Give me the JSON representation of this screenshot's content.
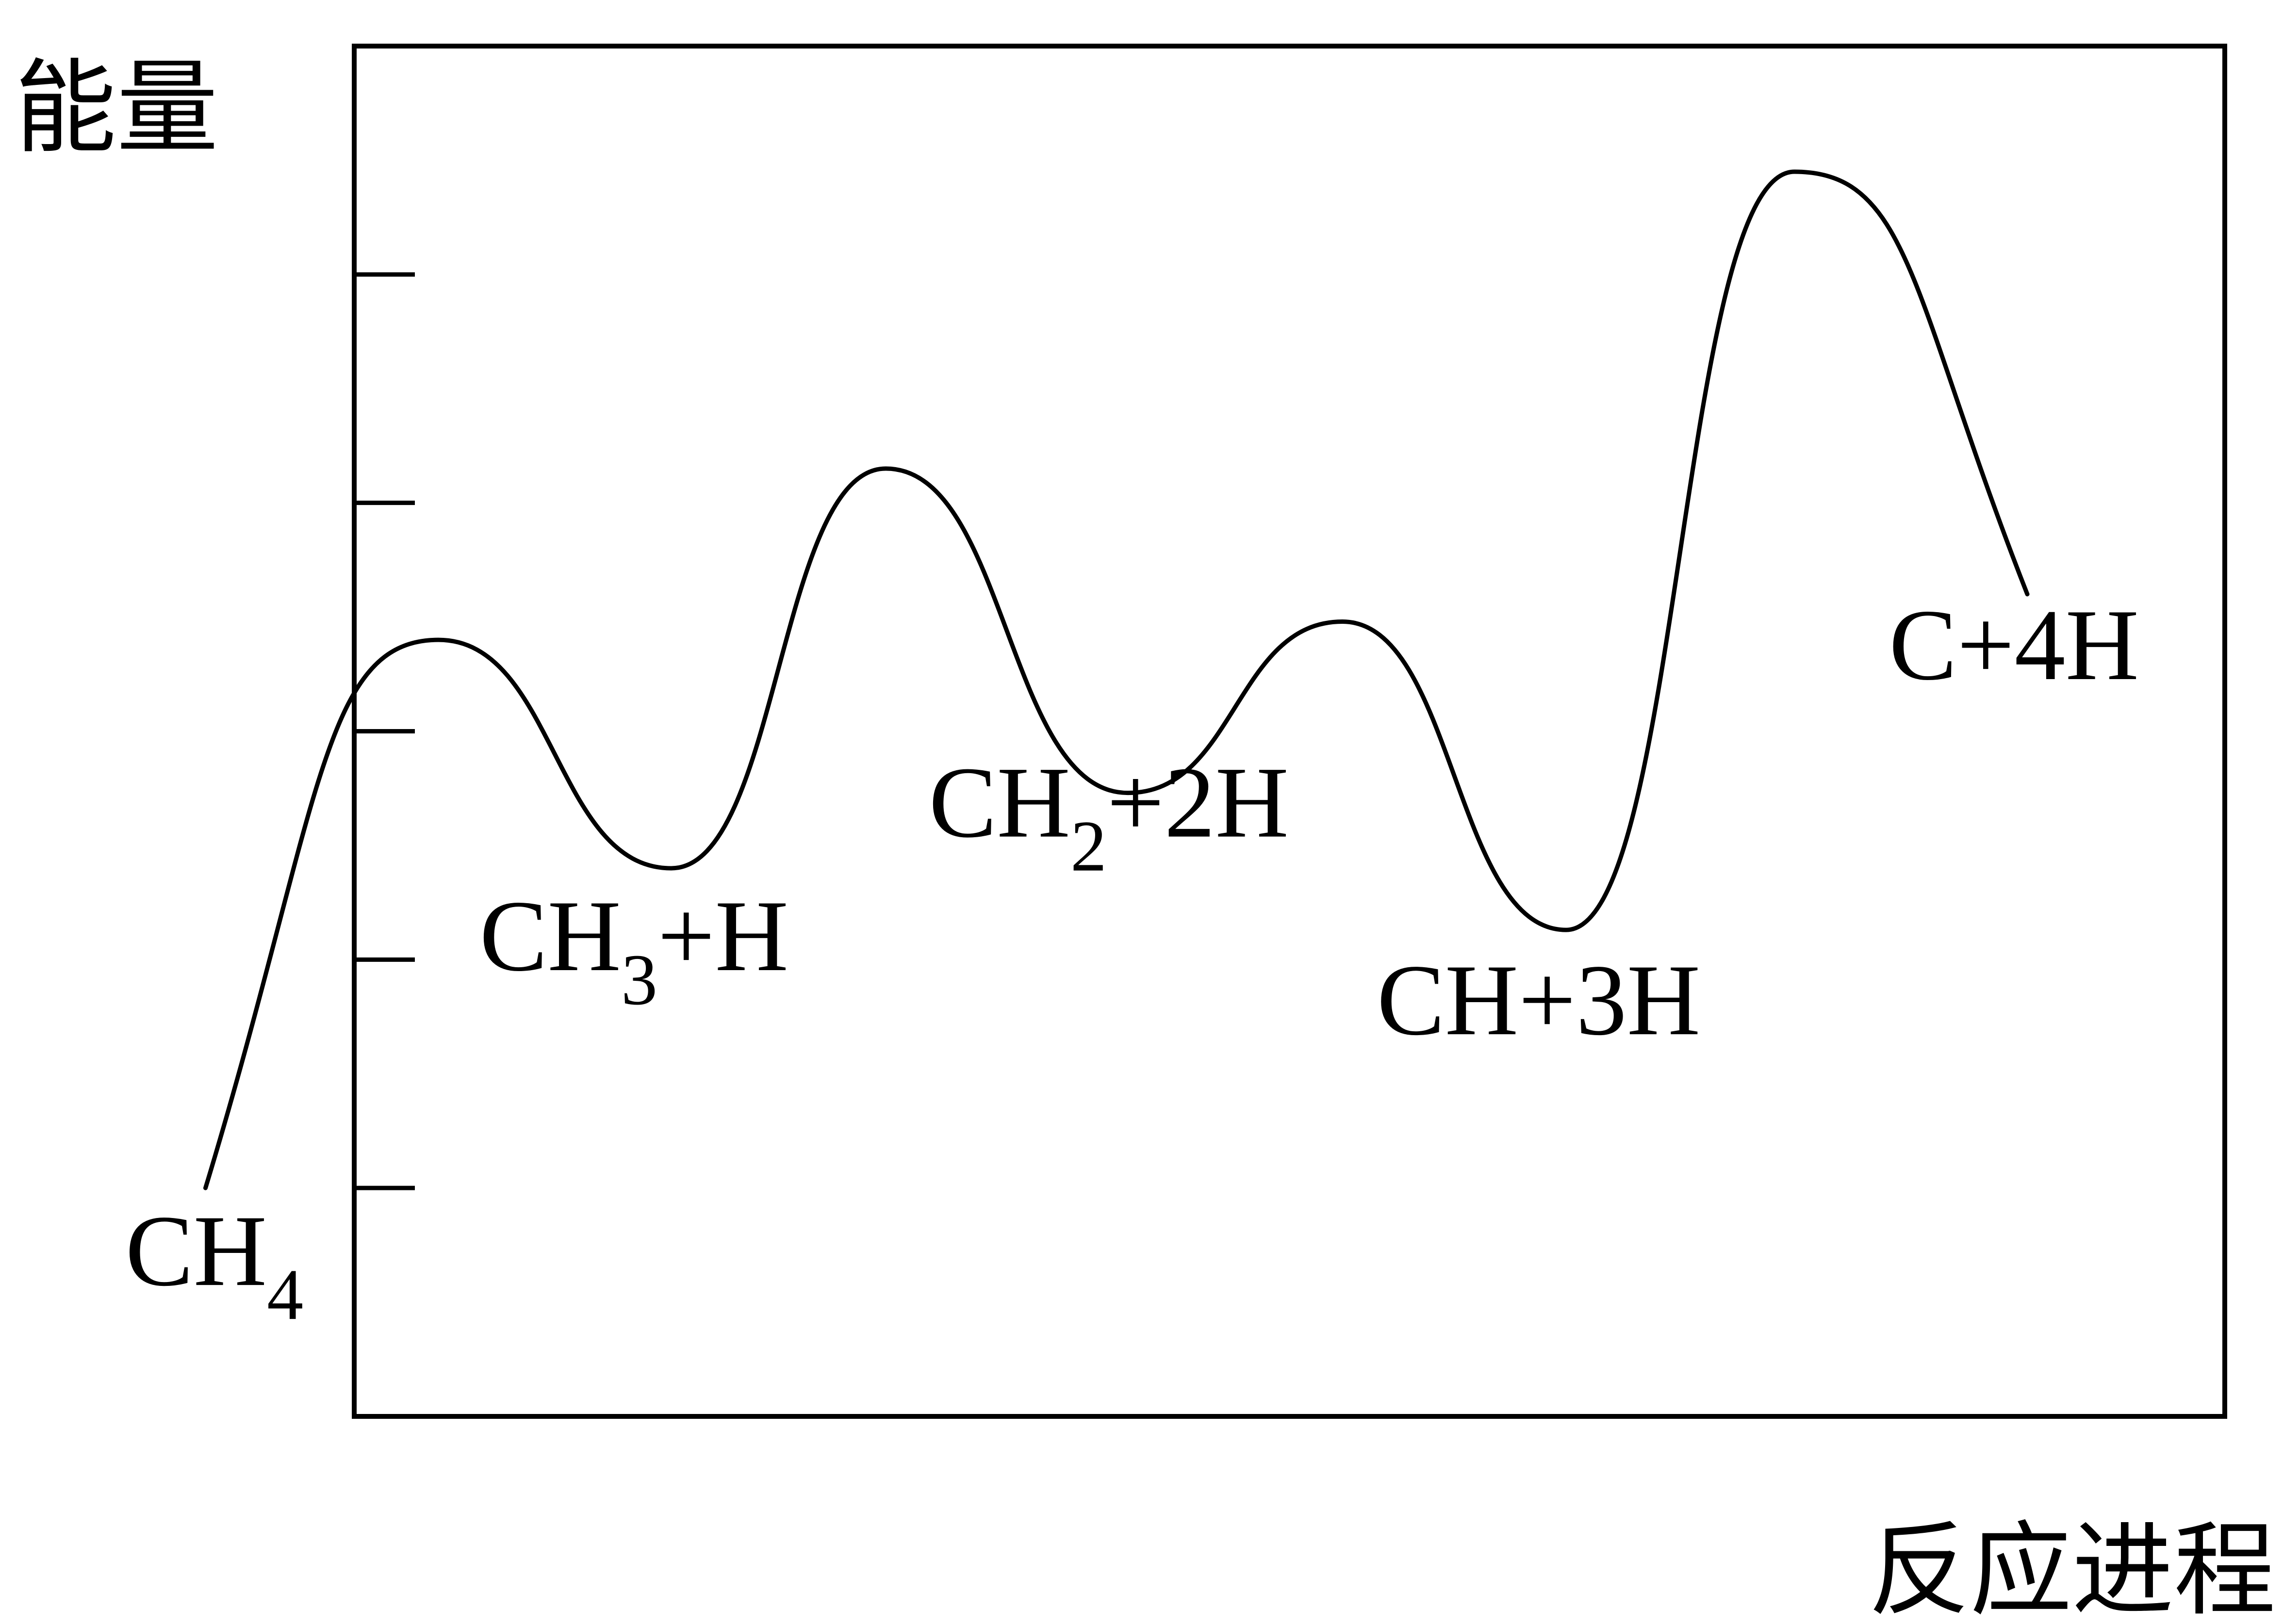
{
  "chart_data": {
    "type": "line",
    "title": "",
    "ylabel": "能量",
    "xlabel": "反应进程",
    "grid": false,
    "legend": "none",
    "line_color": "#000000",
    "ylim": [
      0,
      6
    ],
    "yticks": [
      1,
      2,
      3,
      4,
      5
    ],
    "xlim": [
      0,
      10
    ],
    "points": [
      {
        "x": 0.9,
        "y": 1.0,
        "kind": "start",
        "label_main": "CH",
        "label_sub": "4",
        "label_tail": ""
      },
      {
        "x": 1.92,
        "y": 3.4,
        "kind": "peak"
      },
      {
        "x": 2.94,
        "y": 2.4,
        "kind": "minimum",
        "label_main": "CH",
        "label_sub": "3",
        "label_tail": "+H"
      },
      {
        "x": 3.88,
        "y": 4.15,
        "kind": "peak"
      },
      {
        "x": 4.94,
        "y": 2.73,
        "kind": "minimum",
        "label_main": "CH",
        "label_sub": "2",
        "label_tail": "+2H"
      },
      {
        "x": 5.88,
        "y": 3.48,
        "kind": "peak"
      },
      {
        "x": 6.86,
        "y": 2.13,
        "kind": "minimum",
        "label_main": "CH+3H",
        "label_sub": "",
        "label_tail": ""
      },
      {
        "x": 7.86,
        "y": 5.45,
        "kind": "peak"
      },
      {
        "x": 8.88,
        "y": 3.6,
        "kind": "end",
        "label_main": "C+4H",
        "label_sub": "",
        "label_tail": ""
      }
    ]
  }
}
